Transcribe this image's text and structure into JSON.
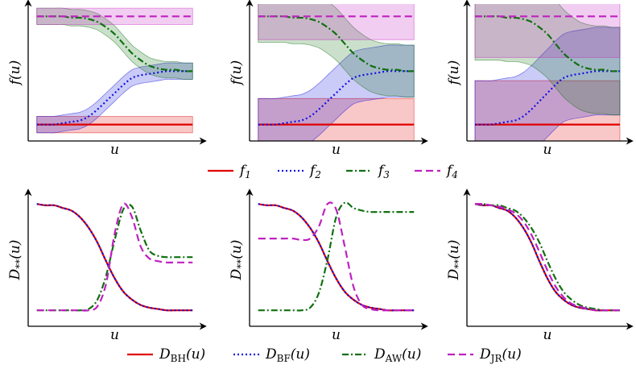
{
  "chart_data": [
    {
      "type": "line",
      "xlabel": "u",
      "ylabel": "f(u)",
      "xlim": [
        0,
        1
      ],
      "ylim": [
        0,
        1
      ],
      "x": [
        0.05,
        0.1,
        0.15,
        0.2,
        0.25,
        0.3,
        0.35,
        0.4,
        0.45,
        0.5,
        0.55,
        0.6,
        0.65,
        0.7,
        0.75,
        0.8,
        0.85,
        0.9,
        0.95
      ],
      "series": [
        {
          "name": "f1",
          "color": "#e00000",
          "dash": "solid",
          "error": 0.06,
          "values": [
            0.12,
            0.12,
            0.12,
            0.12,
            0.12,
            0.12,
            0.12,
            0.12,
            0.12,
            0.12,
            0.12,
            0.12,
            0.12,
            0.12,
            0.12,
            0.12,
            0.12,
            0.12,
            0.12
          ]
        },
        {
          "name": "f2",
          "color": "#1010e0",
          "dash": "dotted",
          "error": 0.06,
          "values": [
            0.12,
            0.12,
            0.12,
            0.13,
            0.14,
            0.15,
            0.18,
            0.23,
            0.29,
            0.35,
            0.41,
            0.46,
            0.48,
            0.49,
            0.5,
            0.51,
            0.51,
            0.51,
            0.51
          ]
        },
        {
          "name": "f3",
          "color": "#107010",
          "dash": "dashdot",
          "error": 0.06,
          "values": [
            0.91,
            0.91,
            0.91,
            0.91,
            0.9,
            0.9,
            0.89,
            0.87,
            0.83,
            0.78,
            0.71,
            0.64,
            0.59,
            0.55,
            0.53,
            0.52,
            0.52,
            0.51,
            0.51
          ]
        },
        {
          "name": "f4",
          "color": "#c020c0",
          "dash": "dashed",
          "error": 0.06,
          "values": [
            0.91,
            0.91,
            0.91,
            0.91,
            0.91,
            0.91,
            0.91,
            0.91,
            0.91,
            0.91,
            0.91,
            0.91,
            0.91,
            0.91,
            0.91,
            0.91,
            0.91,
            0.91,
            0.91
          ]
        }
      ]
    },
    {
      "type": "line",
      "xlabel": "u",
      "ylabel": "f(u)",
      "xlim": [
        0,
        1
      ],
      "ylim": [
        0,
        1
      ],
      "x": [
        0.05,
        0.1,
        0.15,
        0.2,
        0.25,
        0.3,
        0.35,
        0.4,
        0.45,
        0.5,
        0.55,
        0.6,
        0.65,
        0.7,
        0.75,
        0.8,
        0.85,
        0.9,
        0.95
      ],
      "series": [
        {
          "color": "#e00000",
          "dash": "solid",
          "error": 0.19,
          "values": [
            0.12,
            0.12,
            0.12,
            0.12,
            0.12,
            0.12,
            0.12,
            0.12,
            0.12,
            0.12,
            0.12,
            0.12,
            0.12,
            0.12,
            0.12,
            0.12,
            0.12,
            0.12,
            0.12
          ]
        },
        {
          "color": "#1010e0",
          "dash": "dotted",
          "error": 0.19,
          "values": [
            0.12,
            0.12,
            0.12,
            0.13,
            0.14,
            0.15,
            0.18,
            0.23,
            0.29,
            0.35,
            0.41,
            0.46,
            0.48,
            0.49,
            0.5,
            0.51,
            0.51,
            0.51,
            0.51
          ]
        },
        {
          "color": "#107010",
          "dash": "dashdot",
          "error": 0.19,
          "values": [
            0.91,
            0.91,
            0.91,
            0.91,
            0.9,
            0.9,
            0.89,
            0.87,
            0.83,
            0.78,
            0.71,
            0.64,
            0.59,
            0.55,
            0.53,
            0.52,
            0.52,
            0.51,
            0.51
          ]
        },
        {
          "color": "#c020c0",
          "dash": "dashed",
          "error": 0.17,
          "values": [
            0.91,
            0.91,
            0.91,
            0.91,
            0.91,
            0.91,
            0.91,
            0.91,
            0.91,
            0.91,
            0.91,
            0.91,
            0.91,
            0.91,
            0.91,
            0.91,
            0.91,
            0.91,
            0.91
          ]
        }
      ]
    },
    {
      "type": "line",
      "xlabel": "u",
      "ylabel": "f(u)",
      "xlim": [
        0,
        1
      ],
      "ylim": [
        0,
        1
      ],
      "x": [
        0.05,
        0.1,
        0.15,
        0.2,
        0.25,
        0.3,
        0.35,
        0.4,
        0.45,
        0.5,
        0.55,
        0.6,
        0.65,
        0.7,
        0.75,
        0.8,
        0.85,
        0.9,
        0.95
      ],
      "series": [
        {
          "color": "#e00000",
          "dash": "solid",
          "error": 0.32,
          "values": [
            0.12,
            0.12,
            0.12,
            0.12,
            0.12,
            0.12,
            0.12,
            0.12,
            0.12,
            0.12,
            0.12,
            0.12,
            0.12,
            0.12,
            0.12,
            0.12,
            0.12,
            0.12,
            0.12
          ]
        },
        {
          "color": "#1010e0",
          "dash": "dotted",
          "error": 0.32,
          "values": [
            0.12,
            0.12,
            0.12,
            0.13,
            0.14,
            0.15,
            0.18,
            0.23,
            0.29,
            0.35,
            0.41,
            0.46,
            0.48,
            0.49,
            0.5,
            0.51,
            0.51,
            0.51,
            0.51
          ]
        },
        {
          "color": "#107010",
          "dash": "dashdot",
          "error": 0.32,
          "values": [
            0.91,
            0.91,
            0.91,
            0.91,
            0.9,
            0.9,
            0.89,
            0.87,
            0.83,
            0.78,
            0.71,
            0.64,
            0.59,
            0.55,
            0.53,
            0.52,
            0.52,
            0.51,
            0.51
          ]
        },
        {
          "color": "#c020c0",
          "dash": "dashed",
          "error": 0.3,
          "values": [
            0.91,
            0.91,
            0.91,
            0.91,
            0.91,
            0.91,
            0.91,
            0.91,
            0.91,
            0.91,
            0.91,
            0.91,
            0.91,
            0.91,
            0.91,
            0.91,
            0.91,
            0.91,
            0.91
          ]
        }
      ]
    },
    {
      "type": "line",
      "xlabel": "u",
      "ylabel": "D**(u)",
      "xlim": [
        0,
        1
      ],
      "ylim": [
        0,
        1
      ],
      "x": [
        0.05,
        0.1,
        0.15,
        0.2,
        0.25,
        0.3,
        0.35,
        0.4,
        0.45,
        0.5,
        0.55,
        0.6,
        0.65,
        0.7,
        0.75,
        0.8,
        0.85,
        0.9,
        0.95
      ],
      "series": [
        {
          "name": "DBH(u)",
          "color": "#e00000",
          "dash": "solid",
          "values": [
            0.92,
            0.91,
            0.91,
            0.89,
            0.87,
            0.82,
            0.74,
            0.63,
            0.49,
            0.36,
            0.26,
            0.2,
            0.16,
            0.14,
            0.13,
            0.12,
            0.12,
            0.12,
            0.12
          ]
        },
        {
          "name": "DBF(u)",
          "color": "#1010e0",
          "dash": "dotted",
          "values": [
            0.92,
            0.91,
            0.91,
            0.89,
            0.87,
            0.82,
            0.74,
            0.63,
            0.49,
            0.36,
            0.26,
            0.2,
            0.16,
            0.14,
            0.13,
            0.12,
            0.12,
            0.12,
            0.12
          ]
        },
        {
          "name": "DAW(u)",
          "color": "#107010",
          "dash": "dashdot",
          "values": [
            0.12,
            0.12,
            0.12,
            0.12,
            0.12,
            0.12,
            0.13,
            0.2,
            0.38,
            0.65,
            0.88,
            0.9,
            0.72,
            0.57,
            0.53,
            0.52,
            0.52,
            0.52,
            0.52
          ]
        },
        {
          "name": "DJR(u)",
          "color": "#c020c0",
          "dash": "dashed",
          "values": [
            0.12,
            0.12,
            0.12,
            0.12,
            0.12,
            0.12,
            0.12,
            0.15,
            0.32,
            0.7,
            0.92,
            0.82,
            0.6,
            0.51,
            0.49,
            0.48,
            0.48,
            0.48,
            0.48
          ]
        }
      ]
    },
    {
      "type": "line",
      "xlabel": "u",
      "ylabel": "D**(u)",
      "xlim": [
        0,
        1
      ],
      "ylim": [
        0,
        1
      ],
      "x": [
        0.05,
        0.1,
        0.15,
        0.2,
        0.25,
        0.3,
        0.35,
        0.4,
        0.45,
        0.5,
        0.55,
        0.6,
        0.65,
        0.7,
        0.75,
        0.8,
        0.85,
        0.9,
        0.95
      ],
      "series": [
        {
          "color": "#e00000",
          "dash": "solid",
          "values": [
            0.92,
            0.91,
            0.91,
            0.89,
            0.87,
            0.82,
            0.74,
            0.63,
            0.49,
            0.36,
            0.26,
            0.2,
            0.16,
            0.14,
            0.13,
            0.12,
            0.12,
            0.12,
            0.12
          ]
        },
        {
          "color": "#1010e0",
          "dash": "dotted",
          "values": [
            0.92,
            0.91,
            0.91,
            0.89,
            0.87,
            0.82,
            0.74,
            0.63,
            0.49,
            0.36,
            0.26,
            0.2,
            0.16,
            0.14,
            0.13,
            0.12,
            0.12,
            0.12,
            0.12
          ]
        },
        {
          "color": "#107010",
          "dash": "dashdot",
          "values": [
            0.12,
            0.12,
            0.12,
            0.12,
            0.12,
            0.12,
            0.14,
            0.25,
            0.5,
            0.82,
            0.93,
            0.89,
            0.87,
            0.86,
            0.86,
            0.86,
            0.86,
            0.86,
            0.86
          ]
        },
        {
          "color": "#c020c0",
          "dash": "dashed",
          "values": [
            0.66,
            0.66,
            0.66,
            0.66,
            0.66,
            0.65,
            0.66,
            0.75,
            0.92,
            0.88,
            0.6,
            0.3,
            0.16,
            0.13,
            0.12,
            0.12,
            0.12,
            0.12,
            0.12
          ]
        }
      ]
    },
    {
      "type": "line",
      "xlabel": "u",
      "ylabel": "D**(u)",
      "xlim": [
        0,
        1
      ],
      "ylim": [
        0,
        1
      ],
      "x": [
        0.05,
        0.1,
        0.15,
        0.2,
        0.25,
        0.3,
        0.35,
        0.4,
        0.45,
        0.5,
        0.55,
        0.6,
        0.65,
        0.7,
        0.75,
        0.8,
        0.85,
        0.9,
        0.95
      ],
      "series": [
        {
          "color": "#e00000",
          "dash": "solid",
          "values": [
            0.92,
            0.91,
            0.91,
            0.89,
            0.87,
            0.82,
            0.74,
            0.63,
            0.49,
            0.36,
            0.26,
            0.2,
            0.16,
            0.14,
            0.13,
            0.12,
            0.12,
            0.12,
            0.12
          ]
        },
        {
          "color": "#1010e0",
          "dash": "dotted",
          "values": [
            0.92,
            0.91,
            0.91,
            0.89,
            0.87,
            0.82,
            0.74,
            0.63,
            0.49,
            0.36,
            0.26,
            0.2,
            0.16,
            0.14,
            0.13,
            0.12,
            0.12,
            0.12,
            0.12
          ]
        },
        {
          "color": "#107010",
          "dash": "dashdot",
          "values": [
            0.92,
            0.92,
            0.91,
            0.91,
            0.89,
            0.87,
            0.82,
            0.74,
            0.63,
            0.49,
            0.36,
            0.26,
            0.2,
            0.16,
            0.14,
            0.13,
            0.12,
            0.12,
            0.12
          ]
        },
        {
          "color": "#c020c0",
          "dash": "dashed",
          "values": [
            0.92,
            0.92,
            0.91,
            0.9,
            0.88,
            0.85,
            0.79,
            0.69,
            0.56,
            0.42,
            0.3,
            0.22,
            0.17,
            0.15,
            0.13,
            0.12,
            0.12,
            0.12,
            0.12
          ]
        }
      ]
    }
  ]
}
